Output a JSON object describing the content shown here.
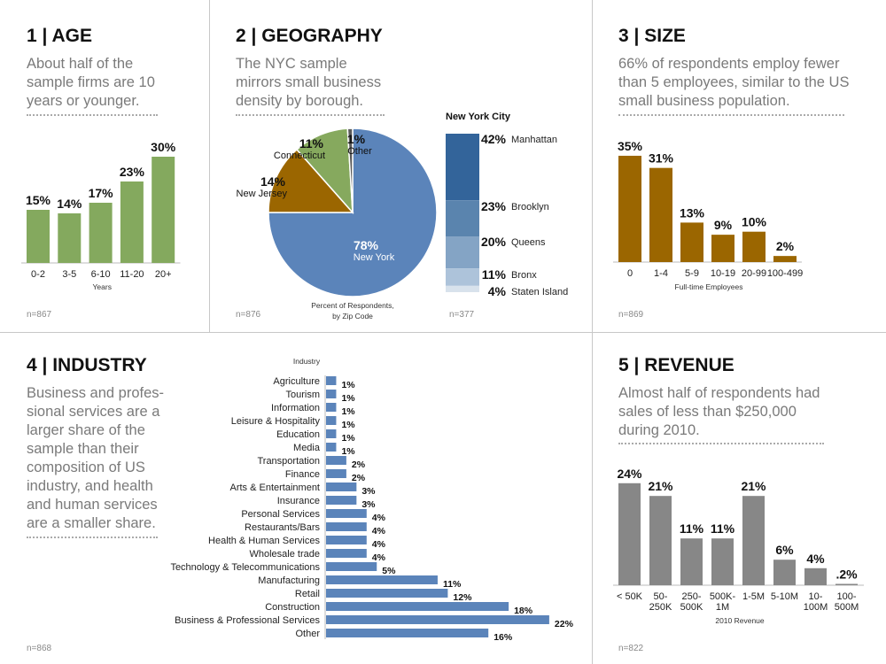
{
  "panels": {
    "age": {
      "title": "1 | AGE",
      "desc": "About half of the sample firms are 10 years or younger.",
      "n": "n=867"
    },
    "geography": {
      "title": "2 | GEOGRAPHY",
      "desc": "The NYC sample mirrors small business density by borough.",
      "n": "n=876",
      "n2": "n=377"
    },
    "size": {
      "title": "3 | SIZE",
      "desc": "66% of respondents employ fewer than 5 employees, similar to the US small business population.",
      "n": "n=869"
    },
    "industry": {
      "title": "4 | INDUSTRY",
      "desc": "Business and profes-sional services are a larger share of the sample than their composition of US industry, and health and human services are a smaller share.",
      "n": "n=868"
    },
    "revenue": {
      "title": "5 | REVENUE",
      "desc": "Almost half of respondents had sales of less than $250,000 during 2010.",
      "n": "n=822"
    }
  },
  "chart_data": [
    {
      "id": "age",
      "type": "bar",
      "categories": [
        "0-2",
        "3-5",
        "6-10",
        "11-20",
        "20+"
      ],
      "values": [
        15,
        14,
        17,
        23,
        30
      ],
      "labels": [
        "15%",
        "14%",
        "17%",
        "23%",
        "30%"
      ],
      "xlabel": "Years",
      "color": "#84a95e"
    },
    {
      "id": "geography",
      "type": "pie",
      "title": "Percent of Respondents, by Zip Code",
      "slices": [
        {
          "name": "New York",
          "value": 78,
          "label": "78%",
          "color": "#5b84ba"
        },
        {
          "name": "New Jersey",
          "value": 14,
          "label": "14%",
          "color": "#9b6600"
        },
        {
          "name": "Connecticut",
          "value": 11,
          "label": "11%",
          "color": "#86a95e"
        },
        {
          "name": "Other",
          "value": 1,
          "label": "1%",
          "color": "#5a5a5a"
        }
      ]
    },
    {
      "id": "nyc",
      "type": "bar",
      "title": "New York City",
      "stacked": true,
      "categories": [
        "Manhattan",
        "Brooklyn",
        "Queens",
        "Bronx",
        "Staten Island"
      ],
      "values": [
        42,
        23,
        20,
        11,
        4
      ],
      "labels": [
        "42%",
        "23%",
        "20%",
        "11%",
        "4%"
      ],
      "colors": [
        "#33649a",
        "#5a84ae",
        "#84a4c5",
        "#adc3da",
        "#d8e2ec"
      ]
    },
    {
      "id": "size",
      "type": "bar",
      "categories": [
        "0",
        "1-4",
        "5-9",
        "10-19",
        "20-99",
        "100-499"
      ],
      "values": [
        35,
        31,
        13,
        9,
        10,
        2
      ],
      "labels": [
        "35%",
        "31%",
        "13%",
        "9%",
        "10%",
        "2%"
      ],
      "xlabel": "Full-time Employees",
      "color": "#9b6600"
    },
    {
      "id": "industry",
      "type": "bar",
      "orientation": "horizontal",
      "title": "Industry",
      "categories": [
        "Agriculture",
        "Tourism",
        "Information",
        "Leisure & Hospitality",
        "Education",
        "Media",
        "Transportation",
        "Finance",
        "Arts & Entertainment",
        "Insurance",
        "Personal Services",
        "Restaurants/Bars",
        "Health & Human Services",
        "Wholesale trade",
        "Technology & Telecommunications",
        "Manufacturing",
        "Retail",
        "Construction",
        "Business & Professional Services",
        "Other"
      ],
      "values": [
        1,
        1,
        1,
        1,
        1,
        1,
        2,
        2,
        3,
        3,
        4,
        4,
        4,
        4,
        5,
        11,
        12,
        18,
        22,
        16
      ],
      "labels": [
        "1%",
        "1%",
        "1%",
        "1%",
        "1%",
        "1%",
        "2%",
        "2%",
        "3%",
        "3%",
        "4%",
        "4%",
        "4%",
        "4%",
        "5%",
        "11%",
        "12%",
        "18%",
        "22%",
        "16%"
      ],
      "color": "#5b84ba"
    },
    {
      "id": "revenue",
      "type": "bar",
      "categories": [
        "< 50K",
        "50-\n250K",
        "250-\n500K",
        "500K-\n1M",
        "1-5M",
        "5-10M",
        "10-\n100M",
        "100-\n500M"
      ],
      "values": [
        24,
        21,
        11,
        11,
        21,
        6,
        4,
        0.2
      ],
      "labels": [
        "24%",
        "21%",
        "11%",
        "11%",
        "21%",
        "6%",
        "4%",
        ".2%"
      ],
      "xlabel": "2010 Revenue",
      "color": "#878787"
    }
  ]
}
